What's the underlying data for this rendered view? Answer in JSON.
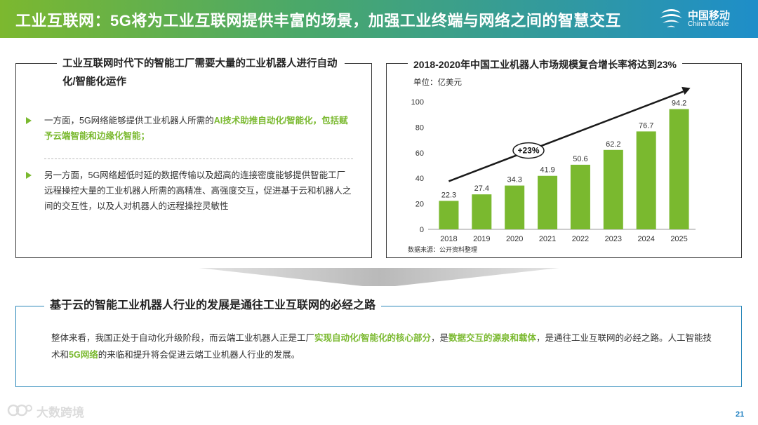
{
  "header": {
    "title": "工业互联网：5G将为工业互联网提供丰富的场景，加强工业终端与网络之间的智慧交互",
    "logo_cn": "中国移动",
    "logo_en": "China Mobile"
  },
  "left_panel": {
    "title": "工业互联网时代下的智能工厂需要大量的工业机器人进行自动化/智能化运作",
    "bullet1_plain": "一方面，5G网络能够提供工业机器人所需的",
    "bullet1_highlight": "AI技术助推自动化/智能化，包括赋予云端智能和边缘化智能；",
    "bullet2": "另一方面，5G网络超低时延的数据传输以及超高的连接密度能够提供智能工厂远程操控大量的工业机器人所需的高精准、高强度交互，促进基于云和机器人之间的交互性，以及人对机器人的远程操控灵敏性"
  },
  "right_panel": {
    "title": "2018-2020年中国工业机器人市场规模复合增长率将达到23%",
    "unit": "单位：亿美元",
    "source": "数据来源：公开资料整理",
    "growth_label": "+23%"
  },
  "chart_data": {
    "type": "bar",
    "title": "2018-2020年中国工业机器人市场规模复合增长率将达到23%",
    "ylabel": "单位：亿美元",
    "categories": [
      "2018",
      "2019",
      "2020",
      "2021",
      "2022",
      "2023",
      "2024",
      "2025"
    ],
    "values": [
      22.3,
      27.4,
      34.3,
      41.9,
      50.6,
      62.2,
      76.7,
      94.2
    ],
    "ylim": [
      0,
      100
    ],
    "yticks": [
      0,
      20,
      40,
      60,
      80,
      100
    ],
    "bar_color": "#7ab92f",
    "grid": false,
    "annotation": "+23%"
  },
  "bottom_panel": {
    "title": "基于云的智能工业机器人行业的发展是通往工业互联网的必经之路",
    "text_1": "整体来看，我国正处于自动化升级阶段，而云端工业机器人正是工厂",
    "highlight_1": "实现自动化/智能化的核心部分",
    "text_2": "，是",
    "highlight_2": "数据交互的源泉和载体",
    "text_3": "，是通往工业互联网的必经之路。人工智能技术和",
    "highlight_3": "5G网络",
    "text_4": "的来临和提升将会促进云端工业机器人行业的发展。"
  },
  "footer": {
    "watermark": "大数跨境",
    "page_number": "21"
  },
  "colors": {
    "accent_green": "#7ab92f",
    "accent_blue": "#1e8ec9",
    "border_blue": "#2a88b9"
  }
}
